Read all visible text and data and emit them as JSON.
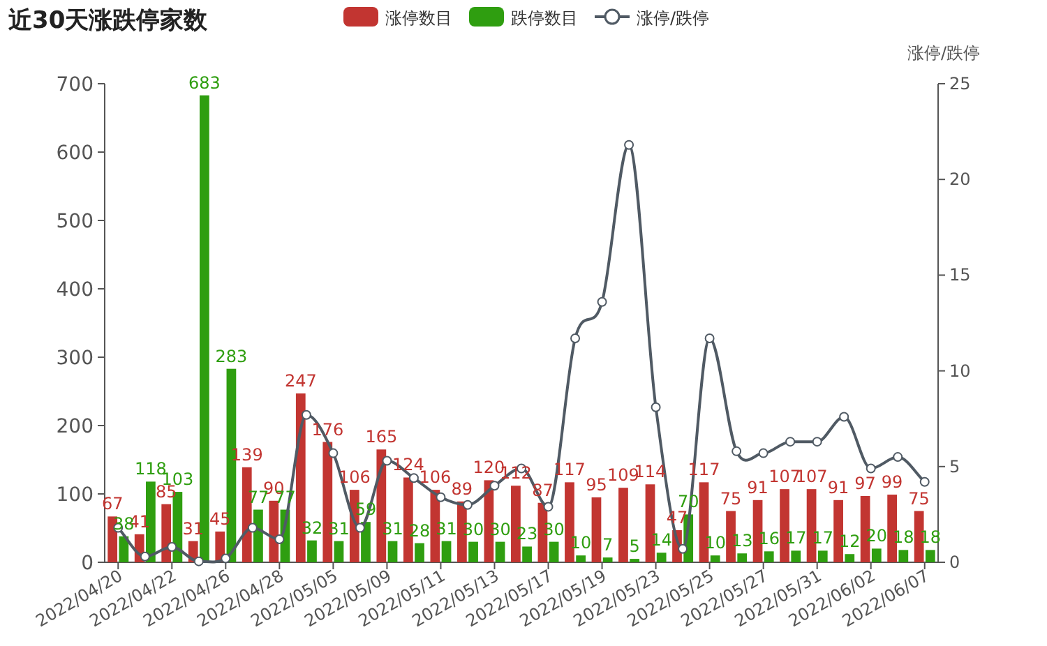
{
  "chart_data": {
    "type": "bar",
    "title": "近30天涨跌停家数",
    "categories": [
      "2022/04/20",
      null,
      "2022/04/22",
      null,
      "2022/04/26",
      null,
      "2022/04/28",
      null,
      "2022/05/05",
      null,
      "2022/05/09",
      null,
      "2022/05/11",
      null,
      "2022/05/13",
      null,
      "2022/05/17",
      null,
      "2022/05/19",
      null,
      "2022/05/23",
      null,
      "2022/05/25",
      null,
      "2022/05/27",
      null,
      "2022/05/31",
      null,
      "2022/06/02",
      null,
      "2022/06/07"
    ],
    "series": [
      {
        "name": "涨停数目",
        "color": "#c23531",
        "values": [
          67,
          41,
          85,
          31,
          45,
          139,
          90,
          247,
          176,
          106,
          165,
          124,
          106,
          89,
          120,
          112,
          87,
          117,
          95,
          109,
          114,
          47,
          117,
          75,
          91,
          107,
          107,
          91,
          97,
          99,
          75
        ],
        "value_labels": [
          "67",
          "41",
          "85",
          "31",
          "45",
          "139",
          "90",
          "247",
          "176",
          "106",
          "165",
          "124",
          "106",
          "89",
          "120",
          "112",
          "87",
          "117",
          "95",
          "109",
          "114",
          "47",
          "117",
          "75",
          "91",
          "107",
          "107",
          "91",
          "97",
          "99",
          "75"
        ]
      },
      {
        "name": "跌停数目",
        "color": "#2f9e10",
        "values": [
          38,
          118,
          103,
          683,
          283,
          77,
          77,
          32,
          31,
          59,
          31,
          28,
          31,
          30,
          30,
          23,
          30,
          10,
          7,
          5,
          14,
          70,
          10,
          13,
          16,
          17,
          17,
          12,
          20,
          18,
          18
        ],
        "value_labels": [
          "38",
          "118",
          "103",
          "683",
          "283",
          "77",
          "77",
          "32",
          "31",
          "59",
          "31",
          "28",
          "31",
          "30",
          "30",
          "23",
          "30",
          "10",
          "7",
          "5",
          "14",
          "70",
          "10",
          "13",
          "16",
          "17",
          "17",
          "12",
          "20",
          "18",
          "18"
        ]
      },
      {
        "name": "涨停/跌停",
        "type": "line",
        "axis": "y2",
        "color": "#505a64",
        "values": [
          1.8,
          0.3,
          0.8,
          0.05,
          0.2,
          1.8,
          1.2,
          7.7,
          5.7,
          1.8,
          5.3,
          4.4,
          3.4,
          3.0,
          4.0,
          4.9,
          2.9,
          11.7,
          13.6,
          21.8,
          8.1,
          0.7,
          11.7,
          5.8,
          5.7,
          6.3,
          6.3,
          7.6,
          4.9,
          5.5,
          4.2
        ]
      }
    ],
    "ylim": [
      0,
      700
    ],
    "yticks": [
      0,
      100,
      200,
      300,
      400,
      500,
      600,
      700
    ],
    "y2lim": [
      0,
      25
    ],
    "y2ticks": [
      0,
      5,
      10,
      15,
      20,
      25
    ],
    "y2label": "涨停/跌停",
    "legend": "top",
    "grid": false,
    "marker": "circle"
  }
}
